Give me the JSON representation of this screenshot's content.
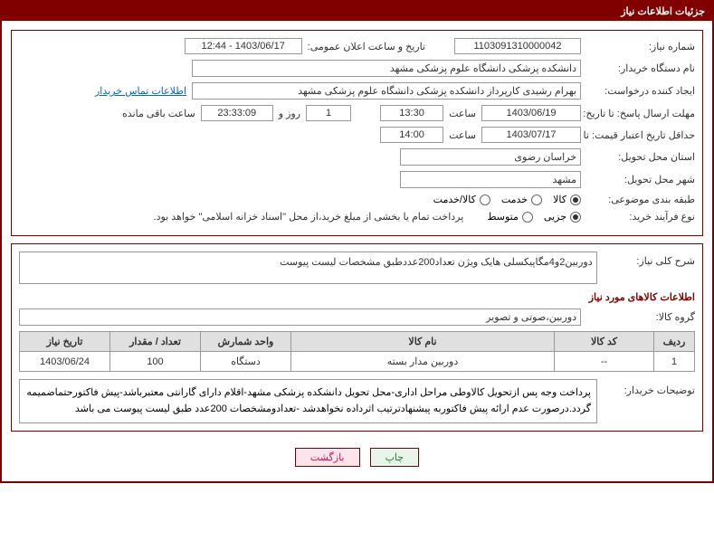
{
  "header": {
    "title": "جزئیات اطلاعات نیاز"
  },
  "form": {
    "need_number_label": "شماره نیاز:",
    "need_number": "1103091310000042",
    "announce_date_label": "تاریخ و ساعت اعلان عمومی:",
    "announce_date": "1403/06/17 - 12:44",
    "buyer_org_label": "نام دستگاه خریدار:",
    "buyer_org": "دانشکده پزشکی   دانشگاه علوم پزشکی مشهد",
    "requester_label": "ایجاد کننده درخواست:",
    "requester": "بهرام رشیدی کارپرداز دانشکده پزشکی   دانشگاه علوم پزشکی مشهد",
    "buyer_contact_link": "اطلاعات تماس خریدار",
    "deadline_label": "مهلت ارسال پاسخ: تا تاریخ:",
    "deadline_date": "1403/06/19",
    "time_label": "ساعت",
    "deadline_time": "13:30",
    "remaining_days": "1",
    "remaining_days_label": "روز و",
    "remaining_time": "23:33:09",
    "remaining_suffix": "ساعت باقی مانده",
    "validity_label": "حداقل تاریخ اعتبار قیمت: تا تاریخ:",
    "validity_date": "1403/07/17",
    "validity_time": "14:00",
    "province_label": "استان محل تحویل:",
    "province": "خراسان رضوی",
    "city_label": "شهر محل تحویل:",
    "city": "مشهد",
    "category_label": "طبقه بندی موضوعی:",
    "category_options": {
      "goods": "کالا",
      "service": "خدمت",
      "goods_service": "کالا/خدمت"
    },
    "category_selected": "goods",
    "process_label": "نوع فرآیند خرید:",
    "process_options": {
      "minor": "جزیی",
      "medium": "متوسط"
    },
    "process_selected": "minor",
    "payment_note": "پرداخت تمام یا بخشی از مبلغ خرید،از محل \"اسناد خزانه اسلامی\" خواهد بود."
  },
  "description": {
    "label": "شرح کلی نیاز:",
    "text": "دوربین2و4مگاپیکسلی هایک ویژن تعداد200عددطبق مشخصات لیست پیوست"
  },
  "goods": {
    "section_title": "اطلاعات کالاهای مورد نیاز",
    "group_label": "گروه کالا:",
    "group_value": "دوربین،صوتی و تصویر"
  },
  "table": {
    "headers": {
      "row": "ردیف",
      "code": "کد کالا",
      "name": "نام کالا",
      "unit": "واحد شمارش",
      "qty": "تعداد / مقدار",
      "date": "تاریخ نیاز"
    },
    "rows": [
      {
        "row": "1",
        "code": "--",
        "name": "دوربین مدار بسته",
        "unit": "دستگاه",
        "qty": "100",
        "date": "1403/06/24"
      }
    ]
  },
  "buyer_notes": {
    "label": "توضیحات خریدار:",
    "text": "پرداخت وجه پس ازتحویل کالاوطی مراحل اداری-محل تحویل دانشکده پزشکی مشهد-اقلام دارای گارانتی معتبرباشد-پیش فاکتورحتماضمیمه گردد.درصورت عدم ارائه پیش فاکتوربه پیشنهادترتیب اثرداده نخواهدشد -تعدادومشخصات 200عدد طبق لیست پیوست می باشد"
  },
  "buttons": {
    "print": "چاپ",
    "back": "بازگشت"
  },
  "colors": {
    "primary": "#800000",
    "border": "#999999",
    "header_bg": "#e0e0e0",
    "link": "#0066cc"
  }
}
